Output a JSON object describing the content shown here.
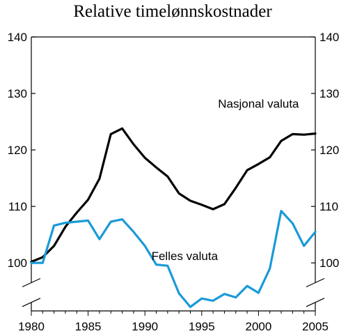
{
  "chart_data": {
    "type": "line",
    "title": "Relative timelønnskostnader",
    "xlabel": "",
    "ylabel": "",
    "xlim": [
      1980,
      2005
    ],
    "ylim": [
      91.5,
      140
    ],
    "x_ticks": [
      "1980",
      "1985",
      "1990",
      "1995",
      "2000",
      "2005"
    ],
    "y_ticks_left": [
      "100",
      "110",
      "120",
      "130",
      "140"
    ],
    "y_ticks_right": [
      "100",
      "110",
      "120",
      "130",
      "140"
    ],
    "axis_break": "y-axis break between 92 and 100",
    "grid": false,
    "legend": "none (series labelled directly on chart)",
    "series": [
      {
        "name": "Nasjonal valuta",
        "color": "#000000",
        "x": [
          1980,
          1981,
          1982,
          1983,
          1984,
          1985,
          1986,
          1987,
          1988,
          1989,
          1990,
          1991,
          1992,
          1993,
          1994,
          1995,
          1996,
          1997,
          1998,
          1999,
          2000,
          2001,
          2002,
          2003,
          2004,
          2005
        ],
        "values": [
          100.2,
          101.0,
          103.0,
          106.4,
          108.9,
          111.2,
          114.9,
          122.8,
          123.8,
          121.0,
          118.6,
          116.9,
          115.3,
          112.3,
          111.0,
          110.3,
          109.5,
          110.4,
          113.3,
          116.4,
          117.5,
          118.7,
          121.6,
          122.8,
          122.7,
          122.9
        ]
      },
      {
        "name": "Felles valuta",
        "color": "#1a9ad8",
        "x": [
          1980,
          1981,
          1982,
          1983,
          1984,
          1985,
          1986,
          1987,
          1988,
          1989,
          1990,
          1991,
          1992,
          1993,
          1994,
          1995,
          1996,
          1997,
          1998,
          1999,
          2000,
          2001,
          2002,
          2003,
          2004,
          2005
        ],
        "values": [
          100.0,
          100.0,
          106.6,
          107.1,
          107.3,
          107.5,
          104.2,
          107.3,
          107.7,
          105.5,
          103.0,
          99.7,
          99.5,
          94.6,
          92.2,
          93.7,
          93.3,
          94.5,
          93.9,
          95.9,
          94.7,
          99.0,
          109.2,
          107.0,
          103.0,
          105.5
        ]
      }
    ],
    "annotations": [
      {
        "text": "Nasjonal valuta",
        "x": 2000,
        "y": 127.5
      },
      {
        "text": "Felles valuta",
        "x": 1993.5,
        "y": 100.5
      }
    ]
  }
}
